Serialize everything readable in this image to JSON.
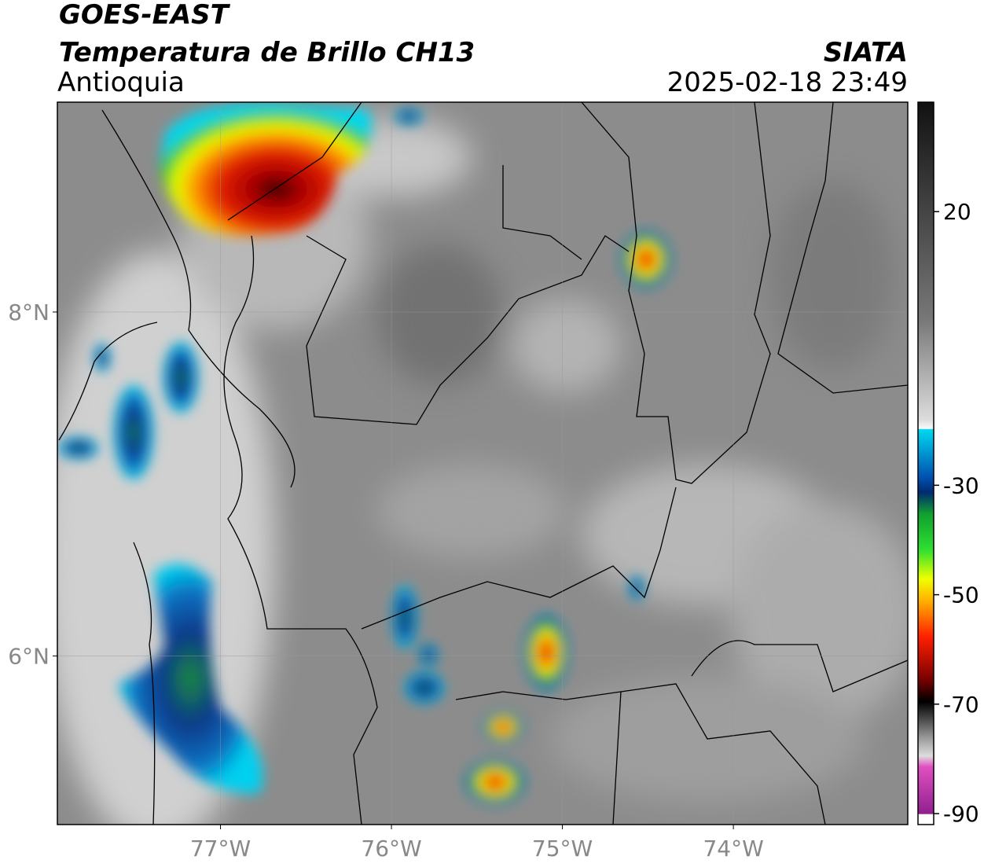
{
  "header": {
    "title": "GOES-EAST",
    "subtitle": "Temperatura de Brillo CH13",
    "region": "Antioquia",
    "org": "SIATA",
    "timestamp": "2025-02-18 23:49"
  },
  "map": {
    "xlim": [
      -77.954,
      -72.98
    ],
    "ylim": [
      5.02,
      9.22
    ],
    "xticks": [
      {
        "value": -77,
        "label": "77°W"
      },
      {
        "value": -76,
        "label": "76°W"
      },
      {
        "value": -75,
        "label": "75°W"
      },
      {
        "value": -74,
        "label": "74°W"
      }
    ],
    "yticks": [
      {
        "value": 8,
        "label": "8°N"
      },
      {
        "value": 6,
        "label": "6°N"
      }
    ],
    "grid": true
  },
  "colorbar": {
    "lim": [
      -92,
      40
    ],
    "ticks": [
      20,
      -30,
      -50,
      -70,
      -90
    ]
  }
}
